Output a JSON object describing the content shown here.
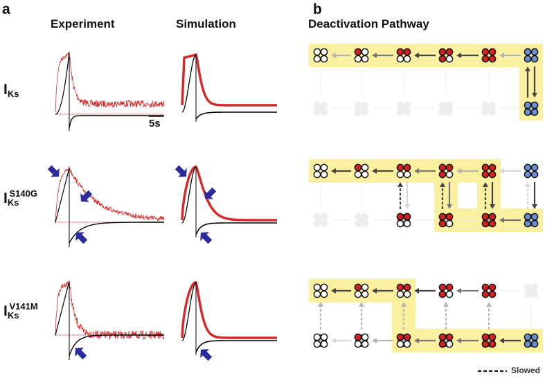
{
  "panel_a": {
    "label": "a",
    "col_headers": [
      "Experiment",
      "Simulation"
    ],
    "rows": [
      {
        "main": "I",
        "sub": "Ks",
        "sup": ""
      },
      {
        "main": "I",
        "sub": "Ks",
        "sup": "S140G"
      },
      {
        "main": "I",
        "sub": "Ks",
        "sup": "V141M"
      }
    ],
    "scale_bar": "5s",
    "colors": {
      "experiment": "#d42a2a",
      "model": "#000000",
      "marker": "#2b2b9a"
    }
  },
  "panel_b": {
    "label": "b",
    "title": "Deactivation Pathway",
    "legend": "Slowed",
    "colors": {
      "highlight": "#faf0a0",
      "red": "#d42222",
      "blue": "#6a8fd0",
      "white": "#ffffff",
      "diamond": "#bdbdbd",
      "ghost": "#eeeeee"
    },
    "panels": [
      {
        "top": [
          "wwww",
          "rwww",
          "rrww",
          "rrrw",
          "rrrr",
          "bbbb"
        ],
        "bottom": [
          "ghost",
          "ghost",
          "ghost",
          "ghost",
          "ghost",
          "bbbb"
        ],
        "top_arrows": [
          "light",
          "mid",
          "dark",
          "dark",
          "light"
        ],
        "bottom_arrows": [
          "none",
          "none",
          "none",
          "none",
          "none"
        ],
        "vertical": [
          null,
          null,
          null,
          null,
          null,
          {
            "up": "dark",
            "up_dashed": false,
            "down": "dark"
          }
        ],
        "highlight": [
          [
            "t",
            0
          ],
          [
            "t",
            1
          ],
          [
            "t",
            2
          ],
          [
            "t",
            3
          ],
          [
            "t",
            4
          ],
          [
            "t",
            5
          ],
          [
            "b",
            5
          ]
        ]
      },
      {
        "top": [
          "wwww",
          "rwww",
          "rrww",
          "rrrw",
          "rrrr",
          "bbbb"
        ],
        "bottom": [
          "ghost",
          "ghost",
          "rrww",
          "rrrw",
          "rrrr",
          "bbbb"
        ],
        "top_arrows": [
          "dark",
          "dark",
          "mid",
          "light",
          "faint"
        ],
        "bottom_arrows": [
          "none",
          "none",
          "none",
          "none",
          "mid"
        ],
        "vertical": [
          null,
          null,
          {
            "up": "dark",
            "up_dashed": true,
            "down": "faint"
          },
          {
            "up": "dark",
            "up_dashed": true,
            "down": "mid"
          },
          {
            "up": "dark",
            "up_dashed": true,
            "down": "dark"
          },
          {
            "up": "faint",
            "up_dashed": true,
            "down": "dark"
          }
        ],
        "highlight": [
          [
            "t",
            0
          ],
          [
            "t",
            1
          ],
          [
            "t",
            2
          ],
          [
            "t",
            3
          ],
          [
            "t",
            4
          ],
          [
            "b",
            3
          ],
          [
            "b",
            4
          ],
          [
            "b",
            5
          ]
        ]
      },
      {
        "top": [
          "wwww",
          "rwww",
          "rrww",
          "rrrw",
          "rrrr",
          "ghost"
        ],
        "bottom": [
          "wwww",
          "rwww",
          "rrww",
          "rrrw",
          "rrrr",
          "bbbb"
        ],
        "top_arrows": [
          "dark",
          "dark",
          "dark",
          "mid",
          "none"
        ],
        "bottom_arrows": [
          "faint",
          "light",
          "mid",
          "mid",
          "dark"
        ],
        "vertical": [
          {
            "up": "light",
            "up_dashed": true
          },
          {
            "up": "light",
            "up_dashed": true
          },
          {
            "up": "light",
            "up_dashed": true
          },
          {
            "up": "light",
            "up_dashed": true
          },
          {
            "up": "light",
            "up_dashed": true
          },
          null
        ],
        "highlight": [
          [
            "t",
            0
          ],
          [
            "t",
            1
          ],
          [
            "t",
            2
          ],
          [
            "b",
            2
          ],
          [
            "b",
            3
          ],
          [
            "b",
            4
          ],
          [
            "b",
            5
          ]
        ]
      }
    ]
  }
}
